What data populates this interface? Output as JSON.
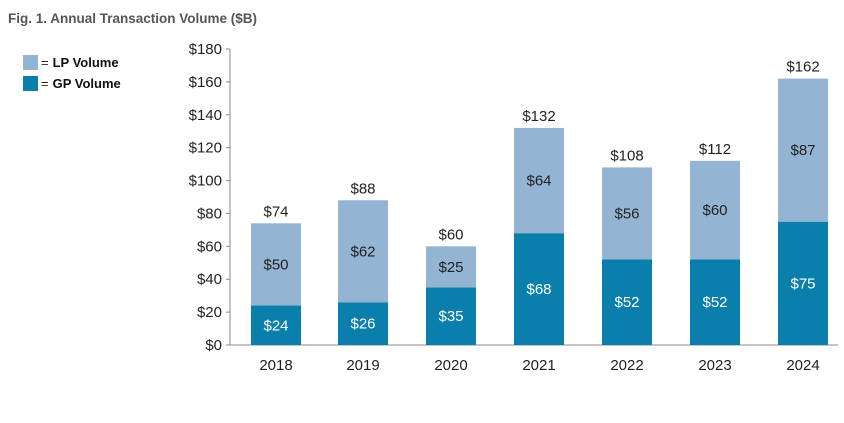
{
  "title": "Fig. 1. Annual Transaction Volume ($B)",
  "legend": [
    {
      "eq": "=",
      "label": "LP Volume",
      "color": "#93b4d3"
    },
    {
      "eq": "=",
      "label": "GP Volume",
      "color": "#0a7fac"
    }
  ],
  "chart_data": {
    "type": "bar",
    "stacked": true,
    "categories": [
      "2018",
      "2019",
      "2020",
      "2021",
      "2022",
      "2023",
      "2024"
    ],
    "series": [
      {
        "name": "GP Volume",
        "color": "#0a7fac",
        "values": [
          24,
          26,
          35,
          68,
          52,
          52,
          75
        ],
        "labels": [
          "$24",
          "$26",
          "$35",
          "$68",
          "$52",
          "$52",
          "$75"
        ]
      },
      {
        "name": "LP Volume",
        "color": "#93b4d3",
        "values": [
          50,
          62,
          25,
          64,
          56,
          60,
          87
        ],
        "labels": [
          "$50",
          "$62",
          "$25",
          "$64",
          "$56",
          "$60",
          "$87"
        ]
      }
    ],
    "totals": [
      74,
      88,
      60,
      132,
      108,
      112,
      162
    ],
    "total_labels": [
      "$74",
      "$88",
      "$60",
      "$132",
      "$108",
      "$112",
      "$162"
    ],
    "ylim": [
      0,
      180
    ],
    "yticks": [
      0,
      20,
      40,
      60,
      80,
      100,
      120,
      140,
      160,
      180
    ],
    "ytick_labels": [
      "$0",
      "$20",
      "$40",
      "$60",
      "$80",
      "$100",
      "$120",
      "$140",
      "$160",
      "$180"
    ],
    "grid": false,
    "legend_position": "top-left"
  }
}
